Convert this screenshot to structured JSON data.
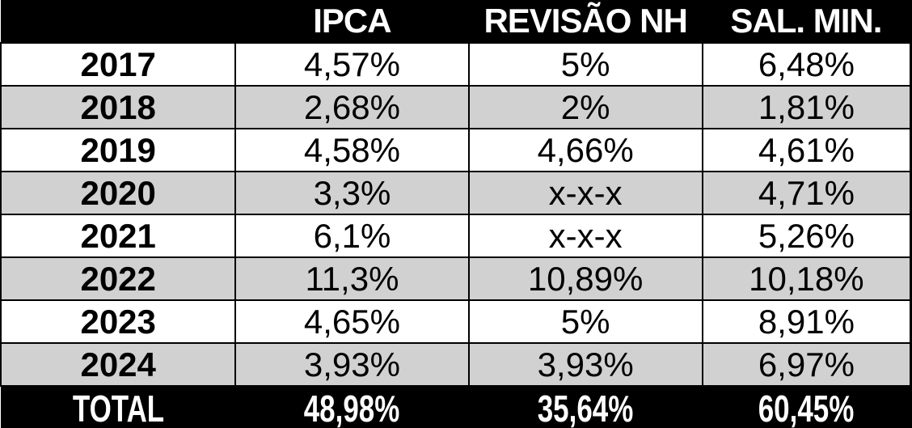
{
  "chart_data": {
    "type": "table",
    "title": "",
    "categories": [
      "2017",
      "2018",
      "2019",
      "2020",
      "2021",
      "2022",
      "2023",
      "2024"
    ],
    "series": [
      {
        "name": "IPCA",
        "values": [
          4.57,
          2.68,
          4.58,
          3.3,
          6.1,
          11.3,
          4.65,
          3.93
        ],
        "total": 48.98
      },
      {
        "name": "REVISÃO NH",
        "values": [
          5,
          2,
          4.66,
          null,
          null,
          10.89,
          5,
          3.93
        ],
        "total": 35.64
      },
      {
        "name": "SAL. MIN.",
        "values": [
          6.48,
          1.81,
          4.61,
          4.71,
          5.26,
          10.18,
          8.91,
          6.97
        ],
        "total": 60.45
      }
    ],
    "unit": "%",
    "missing_marker": "x-x-x",
    "decimal_separator": ",",
    "legend_position": "none",
    "grid": true
  },
  "table": {
    "header": [
      "",
      "IPCA",
      "REVISÃO NH",
      "SAL. MIN."
    ],
    "rows": [
      [
        "2017",
        "4,57%",
        "5%",
        "6,48%"
      ],
      [
        "2018",
        "2,68%",
        "2%",
        "1,81%"
      ],
      [
        "2019",
        "4,58%",
        "4,66%",
        "4,61%"
      ],
      [
        "2020",
        "3,3%",
        "x-x-x",
        "4,71%"
      ],
      [
        "2021",
        "6,1%",
        "x-x-x",
        "5,26%"
      ],
      [
        "2022",
        "11,3%",
        "10,89%",
        "10,18%"
      ],
      [
        "2023",
        "4,65%",
        "5%",
        "8,91%"
      ],
      [
        "2024",
        "3,93%",
        "3,93%",
        "6,97%"
      ]
    ],
    "total_row": [
      "TOTAL",
      "48,98%",
      "35,64%",
      "60,45%"
    ]
  },
  "colors": {
    "header_bg": "#000000",
    "header_text": "#ffffff",
    "row_bg": "#ffffff",
    "row_alt_bg": "#d1d1d1",
    "body_text": "#000000",
    "border": "#000000",
    "total_bg": "#000000",
    "total_text": "#ffffff"
  }
}
